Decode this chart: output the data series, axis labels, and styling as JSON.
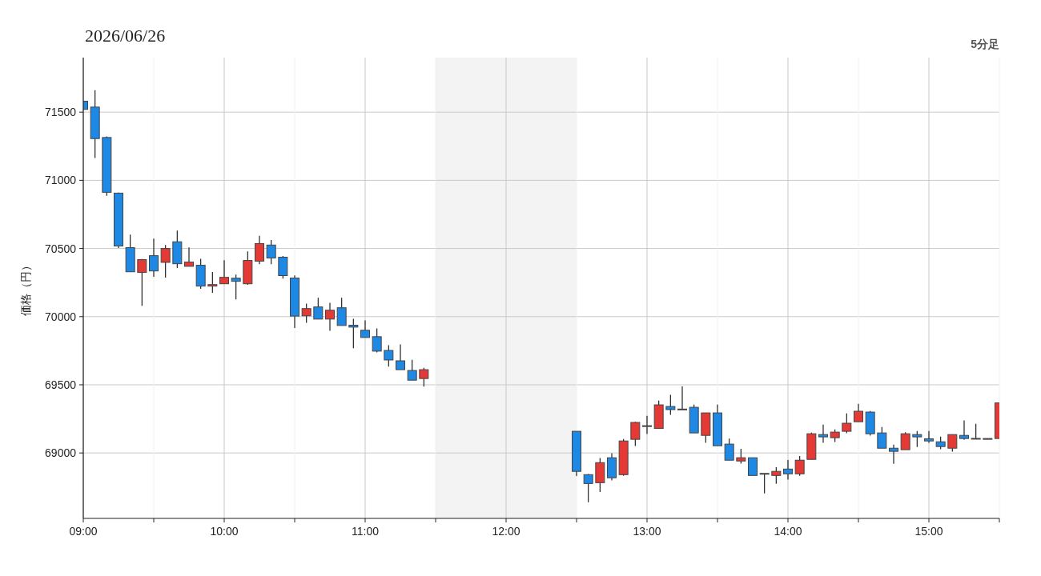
{
  "chart_data": {
    "type": "candlestick",
    "title": "2026/06/26",
    "ylabel": "価格（円）",
    "annotations": [
      "5分足"
    ],
    "x": [
      "2026-06-26T09:00",
      "2026-06-26T09:05",
      "2026-06-26T09:10",
      "2026-06-26T09:15",
      "2026-06-26T09:20",
      "2026-06-26T09:25",
      "2026-06-26T09:30",
      "2026-06-26T09:35",
      "2026-06-26T09:40",
      "2026-06-26T09:45",
      "2026-06-26T09:50",
      "2026-06-26T09:55",
      "2026-06-26T10:00",
      "2026-06-26T10:05",
      "2026-06-26T10:10",
      "2026-06-26T10:15",
      "2026-06-26T10:20",
      "2026-06-26T10:25",
      "2026-06-26T10:30",
      "2026-06-26T10:35",
      "2026-06-26T10:40",
      "2026-06-26T10:45",
      "2026-06-26T10:50",
      "2026-06-26T10:55",
      "2026-06-26T11:00",
      "2026-06-26T11:05",
      "2026-06-26T11:10",
      "2026-06-26T11:15",
      "2026-06-26T11:20",
      "2026-06-26T11:25",
      "2026-06-26T12:30",
      "2026-06-26T12:35",
      "2026-06-26T12:40",
      "2026-06-26T12:45",
      "2026-06-26T12:50",
      "2026-06-26T12:55",
      "2026-06-26T13:00",
      "2026-06-26T13:05",
      "2026-06-26T13:10",
      "2026-06-26T13:15",
      "2026-06-26T13:20",
      "2026-06-26T13:25",
      "2026-06-26T13:30",
      "2026-06-26T13:35",
      "2026-06-26T13:40",
      "2026-06-26T13:45",
      "2026-06-26T13:50",
      "2026-06-26T13:55",
      "2026-06-26T14:00",
      "2026-06-26T14:05",
      "2026-06-26T14:10",
      "2026-06-26T14:15",
      "2026-06-26T14:20",
      "2026-06-26T14:25",
      "2026-06-26T14:30",
      "2026-06-26T14:35",
      "2026-06-26T14:40",
      "2026-06-26T14:45",
      "2026-06-26T14:50",
      "2026-06-26T14:55",
      "2026-06-26T15:00",
      "2026-06-26T15:05",
      "2026-06-26T15:10",
      "2026-06-26T15:15",
      "2026-06-26T15:20",
      "2026-06-26T15:25",
      "2026-06-26T15:30"
    ],
    "ohlc": [
      [
        71580,
        71580,
        71520,
        71520
      ],
      [
        71537,
        71661,
        71163,
        71306
      ],
      [
        71314,
        71322,
        70886,
        70912
      ],
      [
        70906,
        70910,
        70504,
        70518
      ],
      [
        70506,
        70602,
        70329,
        70329
      ],
      [
        70324,
        70422,
        70080,
        70418
      ],
      [
        70447,
        70573,
        70292,
        70335
      ],
      [
        70398,
        70526,
        70286,
        70500
      ],
      [
        70549,
        70631,
        70357,
        70388
      ],
      [
        70369,
        70508,
        70369,
        70400
      ],
      [
        70377,
        70424,
        70204,
        70224
      ],
      [
        70224,
        70327,
        70175,
        70235
      ],
      [
        70241,
        70414,
        70241,
        70288
      ],
      [
        70282,
        70308,
        70126,
        70259
      ],
      [
        70241,
        70478,
        70233,
        70412
      ],
      [
        70407,
        70593,
        70385,
        70536
      ],
      [
        70525,
        70562,
        70385,
        70430
      ],
      [
        70436,
        70444,
        70279,
        70301
      ],
      [
        70283,
        70303,
        69916,
        70004
      ],
      [
        70006,
        70096,
        69955,
        70059
      ],
      [
        70071,
        70138,
        69982,
        69982
      ],
      [
        69982,
        70102,
        69896,
        70047
      ],
      [
        70065,
        70138,
        69935,
        69935
      ],
      [
        69937,
        69984,
        69768,
        69923
      ],
      [
        69900,
        69972,
        69847,
        69847
      ],
      [
        69853,
        69914,
        69737,
        69747
      ],
      [
        69752,
        69790,
        69633,
        69682
      ],
      [
        69676,
        69796,
        69611,
        69611
      ],
      [
        69605,
        69684,
        69534,
        69534
      ],
      [
        69546,
        69625,
        69487,
        69611
      ],
      [
        69159,
        69159,
        68831,
        68865
      ],
      [
        68841,
        68845,
        68639,
        68776
      ],
      [
        68782,
        68963,
        68714,
        68929
      ],
      [
        68965,
        68998,
        68798,
        68818
      ],
      [
        68841,
        69102,
        68833,
        69088
      ],
      [
        69100,
        69229,
        69051,
        69224
      ],
      [
        69200,
        69273,
        69139,
        69196
      ],
      [
        69180,
        69384,
        69180,
        69353
      ],
      [
        69341,
        69426,
        69280,
        69318
      ],
      [
        69322,
        69488,
        69316,
        69320
      ],
      [
        69335,
        69355,
        69147,
        69147
      ],
      [
        69129,
        69294,
        69075,
        69294
      ],
      [
        69294,
        69355,
        69053,
        69053
      ],
      [
        69065,
        69106,
        68947,
        68947
      ],
      [
        68941,
        69031,
        68922,
        68965
      ],
      [
        68965,
        68965,
        68835,
        68835
      ],
      [
        68848,
        68850,
        68704,
        68850
      ],
      [
        68835,
        68896,
        68774,
        68865
      ],
      [
        68882,
        68949,
        68804,
        68847
      ],
      [
        68847,
        68978,
        68833,
        68947
      ],
      [
        68953,
        69149,
        68953,
        69141
      ],
      [
        69135,
        69208,
        69075,
        69118
      ],
      [
        69112,
        69173,
        69080,
        69153
      ],
      [
        69159,
        69290,
        69145,
        69218
      ],
      [
        69229,
        69361,
        69229,
        69306
      ],
      [
        69300,
        69308,
        69127,
        69141
      ],
      [
        69147,
        69190,
        69035,
        69035
      ],
      [
        69035,
        69061,
        68920,
        69012
      ],
      [
        69024,
        69153,
        69024,
        69141
      ],
      [
        69135,
        69161,
        69043,
        69118
      ],
      [
        69104,
        69161,
        69075,
        69088
      ],
      [
        69082,
        69120,
        69027,
        69047
      ],
      [
        69035,
        69135,
        69010,
        69135
      ],
      [
        69129,
        69239,
        69096,
        69106
      ],
      [
        69107,
        69214,
        69105,
        69105
      ],
      [
        69106,
        69106,
        69106,
        69106
      ],
      [
        69106,
        69367,
        69106,
        69367
      ]
    ],
    "colors": [
      "#1e88e5",
      "#1e88e5",
      "#1e88e5",
      "#1e88e5",
      "#1e88e5",
      "#e53935",
      "#1e88e5",
      "#e53935",
      "#1e88e5",
      "#e53935",
      "#1e88e5",
      "#e53935",
      "#e53935",
      "#1e88e5",
      "#e53935",
      "#e53935",
      "#1e88e5",
      "#1e88e5",
      "#1e88e5",
      "#e53935",
      "#1e88e5",
      "#e53935",
      "#1e88e5",
      "#1e88e5",
      "#1e88e5",
      "#1e88e5",
      "#1e88e5",
      "#1e88e5",
      "#1e88e5",
      "#e53935",
      "#1e88e5",
      "#1e88e5",
      "#e53935",
      "#1e88e5",
      "#e53935",
      "#e53935",
      "#1e88e5",
      "#e53935",
      "#1e88e5",
      "#1e88e5",
      "#1e88e5",
      "#e53935",
      "#1e88e5",
      "#1e88e5",
      "#e53935",
      "#1e88e5",
      "#e53935",
      "#e53935",
      "#1e88e5",
      "#e53935",
      "#e53935",
      "#1e88e5",
      "#e53935",
      "#e53935",
      "#e53935",
      "#1e88e5",
      "#1e88e5",
      "#1e88e5",
      "#e53935",
      "#1e88e5",
      "#1e88e5",
      "#1e88e5",
      "#e53935",
      "#1e88e5",
      "#1e88e5",
      "#e53935",
      "#e53935"
    ],
    "xlim": [
      "2026-06-26T09:00",
      "2026-06-26T15:30"
    ],
    "xticks": [
      {
        "value": "2026-06-26T09:00",
        "label": "09:00"
      },
      {
        "value": "2026-06-26T09:30",
        "label": null
      },
      {
        "value": "2026-06-26T10:00",
        "label": "10:00"
      },
      {
        "value": "2026-06-26T10:30",
        "label": null
      },
      {
        "value": "2026-06-26T11:00",
        "label": "11:00"
      },
      {
        "value": "2026-06-26T11:30",
        "label": null
      },
      {
        "value": "2026-06-26T12:00",
        "label": "12:00"
      },
      {
        "value": "2026-06-26T12:30",
        "label": null
      },
      {
        "value": "2026-06-26T13:00",
        "label": "13:00"
      },
      {
        "value": "2026-06-26T13:30",
        "label": null
      },
      {
        "value": "2026-06-26T14:00",
        "label": "14:00"
      },
      {
        "value": "2026-06-26T14:30",
        "label": null
      },
      {
        "value": "2026-06-26T15:00",
        "label": "15:00"
      },
      {
        "value": "2026-06-26T15:30",
        "label": null
      }
    ],
    "ylim": [
      68520,
      71900
    ],
    "yticks": [
      69000,
      69500,
      70000,
      70500,
      71000,
      71500
    ],
    "grid": true,
    "bands": [
      {
        "axis": "x",
        "from": "2026-06-26T11:30",
        "to": "2026-06-26T12:30",
        "color": "#f3f3f3"
      }
    ]
  }
}
